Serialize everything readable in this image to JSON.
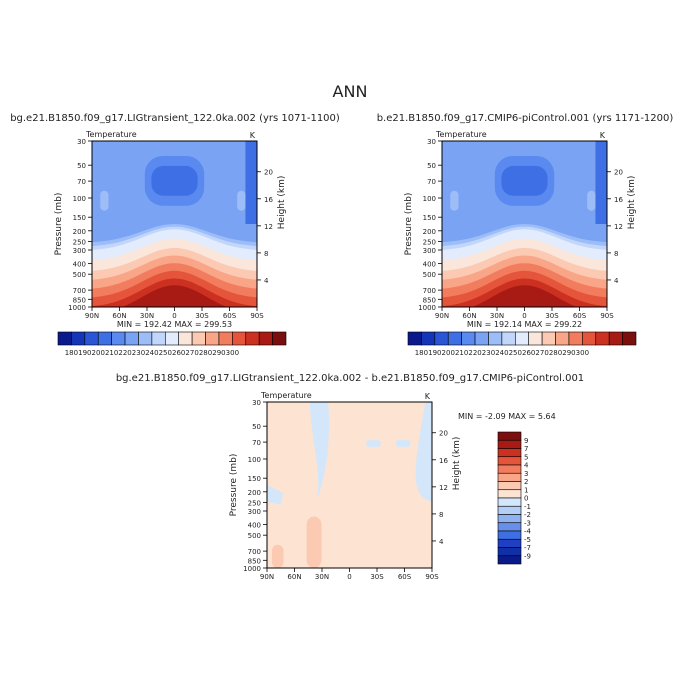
{
  "figure": {
    "title": "ANN"
  },
  "chart_data": [
    {
      "type": "heatmap",
      "title": "bg.e21.B1850.f09_g17.LIGtransient_122.0ka.002 (yrs 1071-1100)",
      "variable": "Temperature",
      "units": "K",
      "xticks": [
        "90N",
        "60N",
        "30N",
        "0",
        "30S",
        "60S",
        "90S"
      ],
      "yticks": [
        "30",
        "50",
        "70",
        "100",
        "150",
        "200",
        "250",
        "300",
        "400",
        "500",
        "700",
        "850",
        "1000"
      ],
      "ylabel": "Pressure (mb)",
      "ylabel_right": "Height (km)",
      "right_ticks": [
        "20",
        "16",
        "12",
        "8",
        "4"
      ],
      "stats": "MIN = 192.42   MAX = 299.53",
      "colorbar_labels": [
        "180",
        "190",
        "200",
        "210",
        "220",
        "230",
        "240",
        "250",
        "260",
        "270",
        "280",
        "290",
        "300"
      ],
      "colors": [
        "#0a1a8a",
        "#1535b8",
        "#2a55d6",
        "#3e6fe4",
        "#5a8af0",
        "#7aa3f4",
        "#9dbdf7",
        "#c2d6fb",
        "#e2ecfc",
        "#fbe6dc",
        "#fcc9b3",
        "#f9a587",
        "#f27c5e",
        "#e4553c",
        "#cc3020",
        "#a81a14",
        "#7a0f0d"
      ],
      "min": 192.42,
      "max": 299.53
    },
    {
      "type": "heatmap",
      "title": "b.e21.B1850.f09_g17.CMIP6-piControl.001 (yrs 1171-1200)",
      "variable": "Temperature",
      "units": "K",
      "xticks": [
        "90N",
        "60N",
        "30N",
        "0",
        "30S",
        "60S",
        "90S"
      ],
      "yticks": [
        "30",
        "50",
        "70",
        "100",
        "150",
        "200",
        "250",
        "300",
        "400",
        "500",
        "700",
        "850",
        "1000"
      ],
      "ylabel": "Pressure (mb)",
      "ylabel_right": "Height (km)",
      "right_ticks": [
        "20",
        "16",
        "12",
        "8",
        "4"
      ],
      "stats": "MIN = 192.14   MAX = 299.22",
      "colorbar_labels": [
        "180",
        "190",
        "200",
        "210",
        "220",
        "230",
        "240",
        "250",
        "260",
        "270",
        "280",
        "290",
        "300"
      ],
      "colors": [
        "#0a1a8a",
        "#1535b8",
        "#2a55d6",
        "#3e6fe4",
        "#5a8af0",
        "#7aa3f4",
        "#9dbdf7",
        "#c2d6fb",
        "#e2ecfc",
        "#fbe6dc",
        "#fcc9b3",
        "#f9a587",
        "#f27c5e",
        "#e4553c",
        "#cc3020",
        "#a81a14",
        "#7a0f0d"
      ],
      "min": 192.14,
      "max": 299.22
    },
    {
      "type": "heatmap",
      "title": "bg.e21.B1850.f09_g17.LIGtransient_122.0ka.002 - b.e21.B1850.f09_g17.CMIP6-piControl.001",
      "variable": "Temperature",
      "units": "K",
      "xticks": [
        "90N",
        "60N",
        "30N",
        "0",
        "30S",
        "60S",
        "90S"
      ],
      "yticks": [
        "30",
        "50",
        "70",
        "100",
        "150",
        "200",
        "250",
        "300",
        "400",
        "500",
        "700",
        "850",
        "1000"
      ],
      "ylabel": "Pressure (mb)",
      "ylabel_right": "Height (km)",
      "right_ticks": [
        "20",
        "16",
        "12",
        "8",
        "4"
      ],
      "stats": "MIN =  -2.09   MAX =   5.64",
      "colorbar_labels": [
        "9",
        "7",
        "5",
        "4",
        "3",
        "2",
        "1",
        "0",
        "-1",
        "-2",
        "-3",
        "-4",
        "-5",
        "-7",
        "-9"
      ],
      "colors": [
        "#7a0f0d",
        "#a81a14",
        "#cc3020",
        "#e4553c",
        "#f27c5e",
        "#f9a587",
        "#fcc9b3",
        "#fde4d2",
        "#d4e6fa",
        "#b5cef6",
        "#8fb2f1",
        "#6890ea",
        "#3e6fe4",
        "#2040c4",
        "#1030a8",
        "#0a1a8a"
      ],
      "min": -2.09,
      "max": 5.64
    }
  ]
}
